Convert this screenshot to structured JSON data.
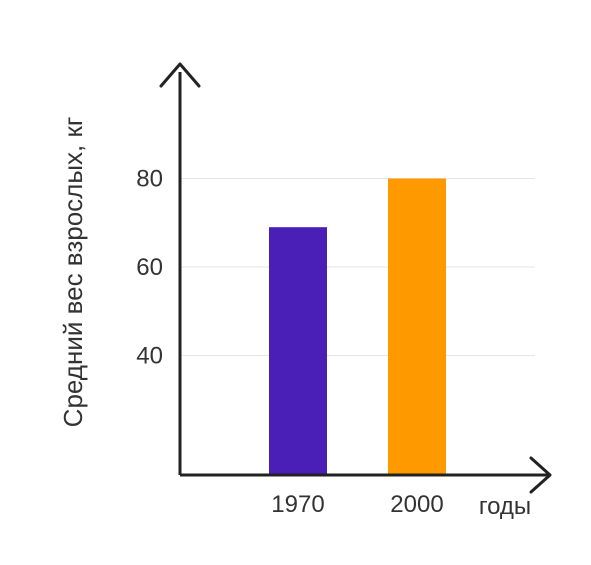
{
  "chart_data": {
    "type": "bar",
    "categories": [
      "1970",
      "2000"
    ],
    "values": [
      69,
      80
    ],
    "colors": [
      "#4a1fb8",
      "#ff9900"
    ],
    "ylabel": "Средний вес взрослых, кг",
    "xlabel": "годы",
    "yticks": [
      40,
      60,
      80
    ],
    "ylim": [
      13,
      100
    ],
    "grid": true,
    "legend": "none"
  }
}
